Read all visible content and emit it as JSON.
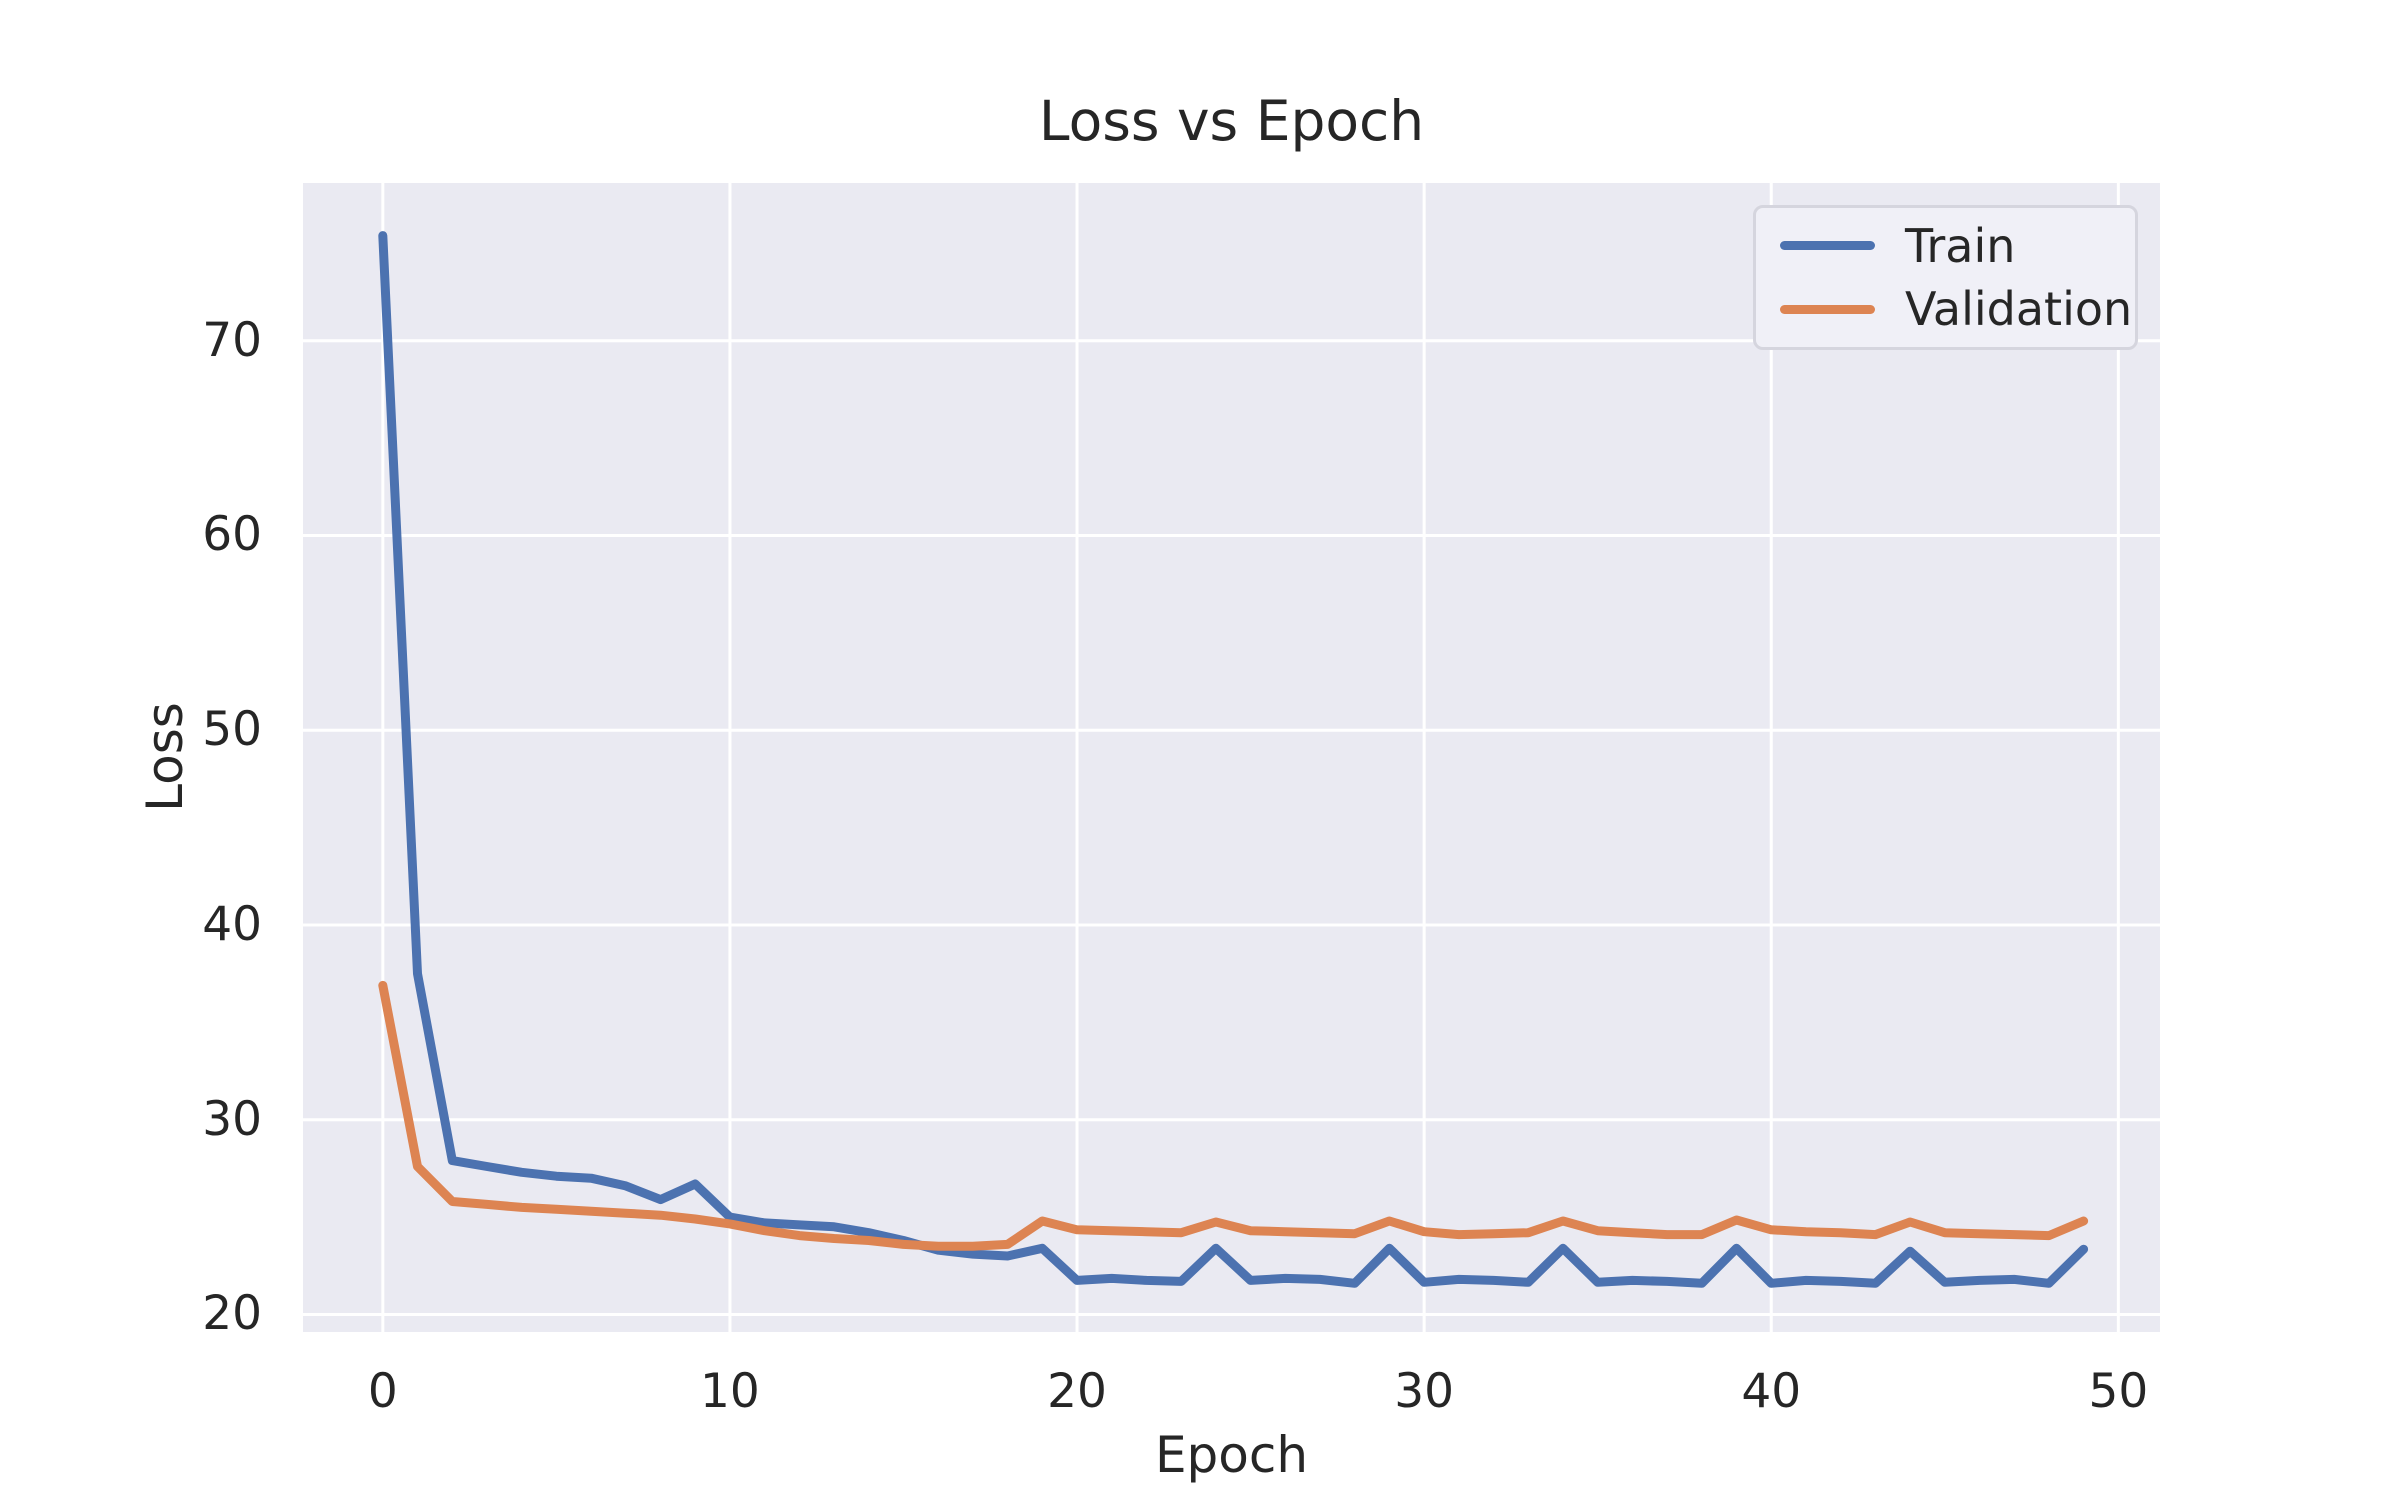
{
  "chart_data": {
    "type": "line",
    "title": "Loss vs Epoch",
    "xlabel": "Epoch",
    "ylabel": "Loss",
    "grid": true,
    "legend_position": "upper right",
    "panel_color": "#EAEAF2",
    "grid_color": "#FFFFFF",
    "text_color": "#262626",
    "xlim": [
      -2.3,
      51.2
    ],
    "ylim": [
      19.1,
      78.1
    ],
    "xticks": [
      0,
      10,
      20,
      30,
      40,
      50
    ],
    "yticks": [
      20,
      30,
      40,
      50,
      60,
      70
    ],
    "x": [
      0,
      1,
      2,
      3,
      4,
      5,
      6,
      7,
      8,
      9,
      10,
      11,
      12,
      13,
      14,
      15,
      16,
      17,
      18,
      19,
      20,
      21,
      22,
      23,
      24,
      25,
      26,
      27,
      28,
      29,
      30,
      31,
      32,
      33,
      34,
      35,
      36,
      37,
      38,
      39,
      40,
      41,
      42,
      43,
      44,
      45,
      46,
      47,
      48,
      49
    ],
    "series": [
      {
        "name": "Train",
        "color": "#4C72B0",
        "values": [
          75.4,
          37.5,
          27.9,
          27.6,
          27.3,
          27.1,
          27.0,
          26.6,
          25.9,
          26.7,
          25.0,
          24.7,
          24.6,
          24.5,
          24.2,
          23.8,
          23.3,
          23.1,
          23.0,
          23.4,
          21.75,
          21.85,
          21.75,
          21.7,
          23.4,
          21.75,
          21.85,
          21.8,
          21.6,
          23.4,
          21.65,
          21.8,
          21.75,
          21.65,
          23.4,
          21.65,
          21.75,
          21.7,
          21.6,
          23.4,
          21.6,
          21.75,
          21.7,
          21.6,
          23.25,
          21.65,
          21.75,
          21.8,
          21.6,
          23.35
        ]
      },
      {
        "name": "Validation",
        "color": "#DD8452",
        "values": [
          36.9,
          27.6,
          25.8,
          25.65,
          25.5,
          25.4,
          25.3,
          25.2,
          25.1,
          24.9,
          24.65,
          24.3,
          24.05,
          23.9,
          23.8,
          23.6,
          23.5,
          23.5,
          23.6,
          24.8,
          24.35,
          24.3,
          24.25,
          24.2,
          24.75,
          24.3,
          24.25,
          24.2,
          24.15,
          24.8,
          24.25,
          24.1,
          24.15,
          24.2,
          24.8,
          24.3,
          24.2,
          24.1,
          24.1,
          24.85,
          24.35,
          24.25,
          24.2,
          24.1,
          24.75,
          24.2,
          24.15,
          24.1,
          24.05,
          24.8
        ]
      }
    ]
  }
}
